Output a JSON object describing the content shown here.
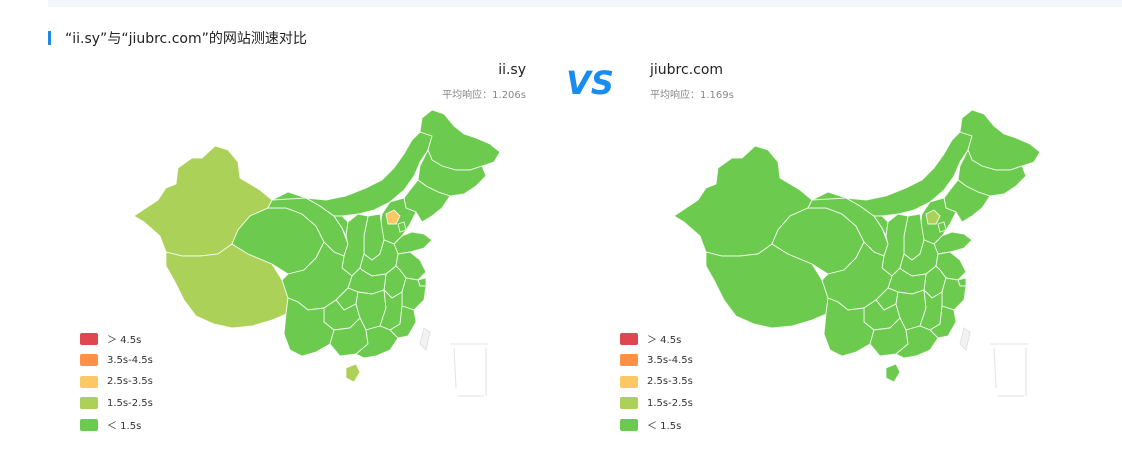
{
  "section": {
    "title": "“ii.sy”与“jiubrc.com”的网站测速对比"
  },
  "left_site": {
    "name": "ii.sy",
    "avg_response": "平均响应：1.206s"
  },
  "right_site": {
    "name": "jiubrc.com",
    "avg_response": "平均响应：1.169s"
  },
  "vs_label": "VS",
  "legend": [
    {
      "label": "＞ 4.5s",
      "color": "#e04650"
    },
    {
      "label": "3.5s-4.5s",
      "color": "#ff9147"
    },
    {
      "label": "2.5s-3.5s",
      "color": "#fcc865"
    },
    {
      "label": "1.5s-2.5s",
      "color": "#abd158"
    },
    {
      "label": "＜ 1.5s",
      "color": "#6ccb4e"
    }
  ],
  "colors": {
    "accent": "#1e88e5",
    "fast": "#6ccb4e",
    "medium": "#abd158",
    "slow": "#fcc865"
  }
}
